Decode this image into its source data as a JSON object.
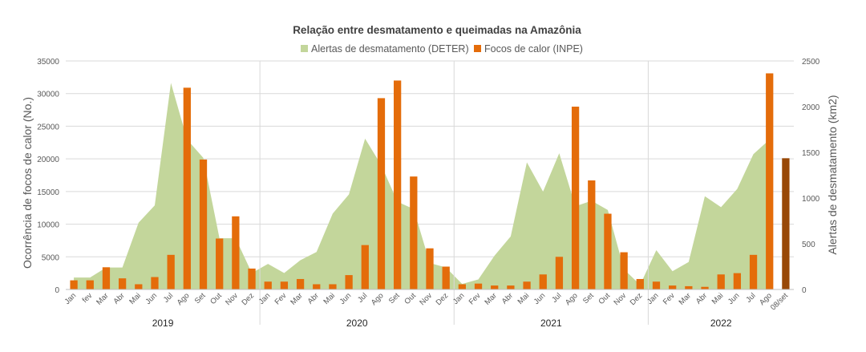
{
  "chart_data": {
    "type": "bar+area",
    "title": "Relação entre desmatamento e queimadas na Amazônia",
    "legend": {
      "placement": "top-center",
      "area_label": "Alertas de desmatamento (DETER)",
      "bar_label": "Focos de calor (INPE)"
    },
    "colors": {
      "area": "#c3d69b",
      "bar": "#e46c0a",
      "bar_highlight": "#984807",
      "grid": "#d9d9d9",
      "text": "#595959",
      "title": "#404040"
    },
    "y_left": {
      "label": "Ocorrência de focos de calor (No.)",
      "min": 0,
      "max": 35000,
      "ticks": [
        "0",
        "5000",
        "10000",
        "15000",
        "20000",
        "25000",
        "30000",
        "35000"
      ],
      "tick_values": [
        0,
        5000,
        10000,
        15000,
        20000,
        25000,
        30000,
        35000
      ]
    },
    "y_right": {
      "label": "Alertas de desmatamento (km2)",
      "min": 0,
      "max": 2500,
      "ticks": [
        "0",
        "500",
        "1000",
        "1500",
        "2000",
        "2500"
      ],
      "tick_values": [
        0,
        500,
        1000,
        1500,
        2000,
        2500
      ]
    },
    "categories": [
      "Jan",
      "fev",
      "Mar",
      "Abr",
      "Mai",
      "Jun",
      "Jul",
      "Ago",
      "Set",
      "Out",
      "Nov",
      "Dez",
      "Jan",
      "Fev",
      "Mar",
      "Abr",
      "Mai",
      "Jun",
      "Jul",
      "Ago",
      "Set",
      "Out",
      "Nov",
      "Dez",
      "Jan",
      "Fev",
      "Mar",
      "Abr",
      "Mai",
      "Jun",
      "Jul",
      "Ago",
      "Set",
      "Out",
      "Nov",
      "Dez",
      "Jan",
      "Fev",
      "Mar",
      "Abr",
      "Mai",
      "Jun",
      "Jul",
      "Ago",
      "08/set"
    ],
    "years": [
      {
        "label": "2019",
        "start": 0,
        "count": 12
      },
      {
        "label": "2020",
        "start": 12,
        "count": 12
      },
      {
        "label": "2021",
        "start": 24,
        "count": 12
      },
      {
        "label": "2022",
        "start": 36,
        "count": 9
      }
    ],
    "focos_de_calor": [
      1400,
      1400,
      3400,
      1700,
      800,
      1900,
      5300,
      30900,
      19900,
      7800,
      11200,
      3200,
      1200,
      1200,
      1600,
      800,
      800,
      2200,
      6800,
      29300,
      32000,
      17300,
      6300,
      3500,
      800,
      900,
      600,
      600,
      1200,
      2300,
      5000,
      28000,
      16700,
      11600,
      5700,
      1600,
      1200,
      600,
      500,
      400,
      2300,
      2500,
      5300,
      33100,
      20100
    ],
    "alertas_desmatamento": [
      130,
      130,
      240,
      240,
      730,
      920,
      2260,
      1640,
      1440,
      560,
      560,
      180,
      280,
      180,
      320,
      410,
      830,
      1040,
      1650,
      1360,
      960,
      880,
      290,
      240,
      60,
      110,
      370,
      580,
      1390,
      1070,
      1490,
      910,
      970,
      870,
      220,
      50,
      430,
      200,
      300,
      1020,
      900,
      1100,
      1480,
      1640
    ]
  }
}
